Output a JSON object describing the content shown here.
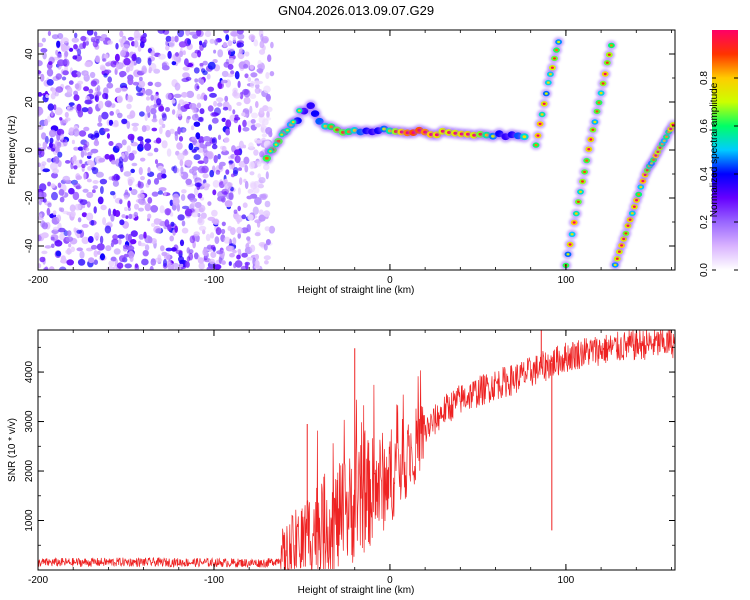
{
  "figure_title": "GN04.2026.013.09.07.G29",
  "colorbar": {
    "label": "Normalized spectral amplitude",
    "ticks": [
      "0.0",
      "0.2",
      "0.4",
      "0.6",
      "0.8"
    ],
    "stops": [
      "#ffffff",
      "#d9b3ff",
      "#9966ff",
      "#6600ff",
      "#0000ff",
      "#00ccff",
      "#00ff66",
      "#ccff00",
      "#ffcc00",
      "#ff3300",
      "#ff0066"
    ]
  },
  "chart_data": [
    {
      "type": "heatmap",
      "title": "GN04.2026.013.09.07.G29",
      "xlabel": "Height of straight line (km)",
      "ylabel": "Frequency (Hz)",
      "xlim": [
        -200,
        162
      ],
      "ylim": [
        -50,
        50
      ],
      "xticks": [
        "-200",
        "-100",
        "0",
        "100"
      ],
      "yticks": [
        "-40",
        "-20",
        "0",
        "20",
        "40"
      ],
      "colorbar_range": [
        0,
        1
      ],
      "features": {
        "noise_region_x": [
          -200,
          -70
        ],
        "dominant_track": {
          "x": [
            -70,
            -60,
            -45,
            -40,
            -30,
            0,
            30,
            80
          ],
          "freq": [
            -3,
            8,
            18,
            12,
            8,
            8,
            7,
            6
          ]
        },
        "peak": {
          "x": 25,
          "freq": 8,
          "amplitude": 0.95
        },
        "aliased_tracks": [
          {
            "x": [
              83,
              90,
              97
            ],
            "freq": [
              2,
              28,
              48
            ]
          },
          {
            "x": [
              100,
              113,
              127
            ],
            "freq": [
              -48,
              0,
              48
            ]
          },
          {
            "x": [
              128,
              145,
              162
            ],
            "freq": [
              -48,
              -10,
              12
            ]
          }
        ]
      }
    },
    {
      "type": "line",
      "xlabel": "Height of straight line (km)",
      "ylabel": "SNR (10 * v/v)",
      "xlim": [
        -200,
        162
      ],
      "ylim": [
        0,
        4850
      ],
      "xticks": [
        "-200",
        "-100",
        "0",
        "100"
      ],
      "yticks": [
        "1000",
        "2000",
        "3000",
        "4000"
      ],
      "color": "#ee2222",
      "series": [
        {
          "name": "SNR",
          "x": [
            -200,
            -150,
            -100,
            -70,
            -60,
            -50,
            -40,
            -30,
            -20,
            -10,
            0,
            10,
            20,
            30,
            40,
            50,
            60,
            70,
            80,
            90,
            100,
            110,
            120,
            130,
            140,
            150,
            162
          ],
          "y": [
            150,
            160,
            150,
            140,
            220,
            600,
            900,
            1000,
            1300,
            1600,
            1900,
            2300,
            2800,
            3200,
            3450,
            3600,
            3750,
            3850,
            4000,
            4150,
            4300,
            4400,
            4450,
            4500,
            4550,
            4570,
            4600
          ]
        }
      ],
      "spikes": [
        {
          "x": -47,
          "y": 2950
        },
        {
          "x": -20,
          "y": 4480
        },
        {
          "x": 92,
          "y": 800
        },
        {
          "x": 86,
          "y": 4850
        }
      ]
    }
  ]
}
